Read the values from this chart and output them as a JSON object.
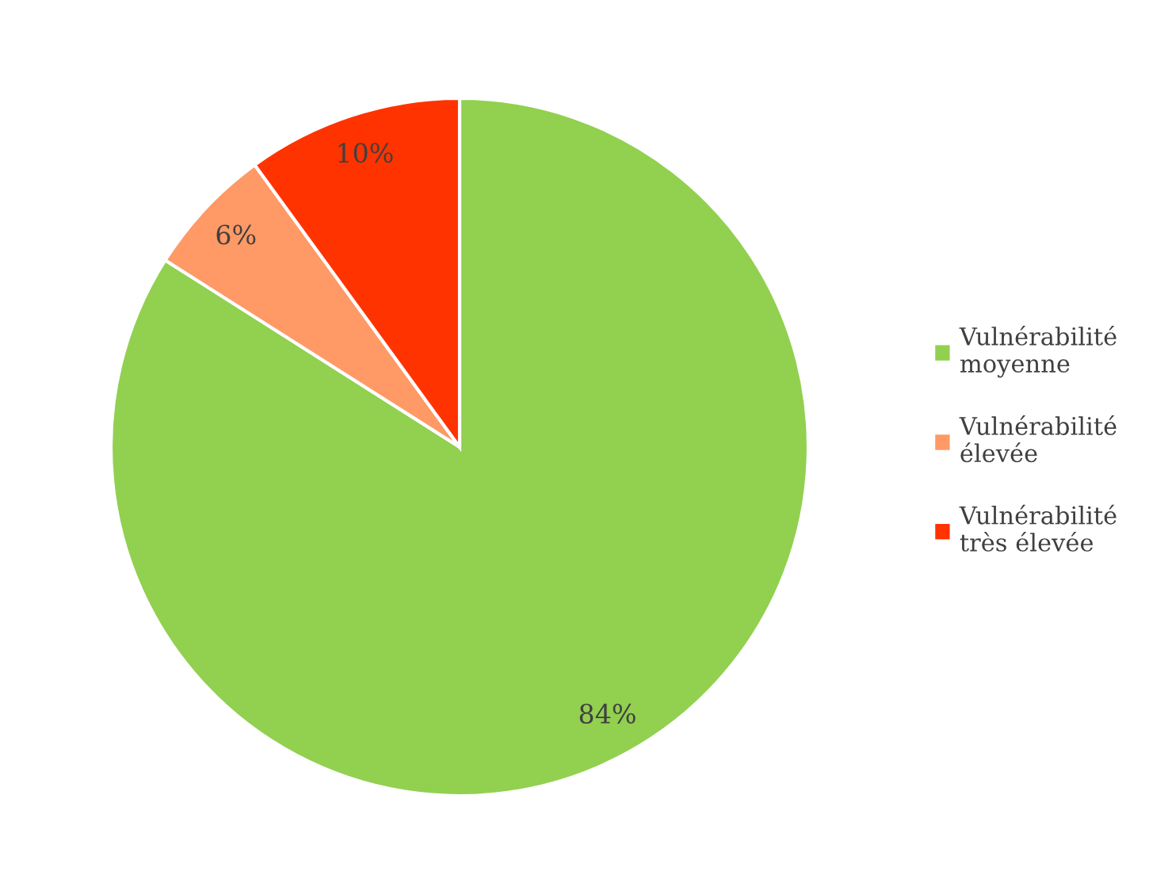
{
  "chart_data": {
    "type": "pie",
    "categories": [
      "Vulnérabilité moyenne",
      "Vulnérabilité élevée",
      "Vulnérabilité très élevée"
    ],
    "values": [
      84,
      6,
      10
    ],
    "colors": [
      "#92d050",
      "#ff9966",
      "#ff3300"
    ],
    "value_labels": [
      "84%",
      "6%",
      "10%"
    ],
    "legend": "right"
  }
}
